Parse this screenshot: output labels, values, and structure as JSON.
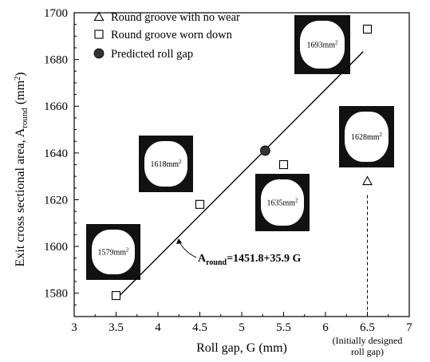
{
  "chart_data": {
    "type": "scatter",
    "xlabel": "Roll gap, G (mm)",
    "ylabel_main": "Exit cross sectional area, A",
    "ylabel_sub": "round",
    "ylabel_unit": "(mm",
    "ylabel_unit_sup": "2",
    "ylabel_close": ")",
    "xlim": [
      3,
      7
    ],
    "ylim": [
      1570,
      1700
    ],
    "xticks": [
      "3",
      "3.5",
      "4",
      "4.5",
      "5",
      "5.5",
      "6",
      "6.5",
      "7"
    ],
    "xtick_values": [
      3,
      3.5,
      4,
      4.5,
      5,
      5.5,
      6,
      6.5,
      7
    ],
    "yticks": [
      "1580",
      "1600",
      "1620",
      "1640",
      "1660",
      "1680",
      "1700"
    ],
    "ytick_values": [
      1580,
      1600,
      1620,
      1640,
      1660,
      1680,
      1700
    ],
    "grid": false,
    "legend_position": "top-left",
    "series": [
      {
        "name": "Round groove with no wear",
        "marker": "triangle-open",
        "points": [
          {
            "x": 6.5,
            "y": 1628
          }
        ]
      },
      {
        "name": "Round groove worn down",
        "marker": "square-open",
        "points": [
          {
            "x": 3.5,
            "y": 1579
          },
          {
            "x": 4.5,
            "y": 1618
          },
          {
            "x": 5.5,
            "y": 1635
          },
          {
            "x": 6.5,
            "y": 1693
          }
        ]
      },
      {
        "name": "Predicted roll gap",
        "marker": "circle-filled",
        "points": [
          {
            "x": 5.28,
            "y": 1641
          }
        ]
      }
    ],
    "fit_line": {
      "intercept": 1451.8,
      "slope": 35.9,
      "x_range": [
        3.55,
        6.45
      ]
    },
    "equation": {
      "lhs": "A",
      "lhs_sub": "round",
      "rhs": "=1451.8+35.9 G"
    },
    "insets": [
      {
        "value": "1579",
        "unit": "mm",
        "sup": "2"
      },
      {
        "value": "1618",
        "unit": "mm",
        "sup": "2"
      },
      {
        "value": "1635",
        "unit": "mm",
        "sup": "2"
      },
      {
        "value": "1693",
        "unit": "mm",
        "sup": "2"
      },
      {
        "value": "1628",
        "unit": "mm",
        "sup": "2"
      }
    ],
    "note_lines": [
      "(Initially designed",
      "roll gap)"
    ],
    "note_x": 6.5
  }
}
